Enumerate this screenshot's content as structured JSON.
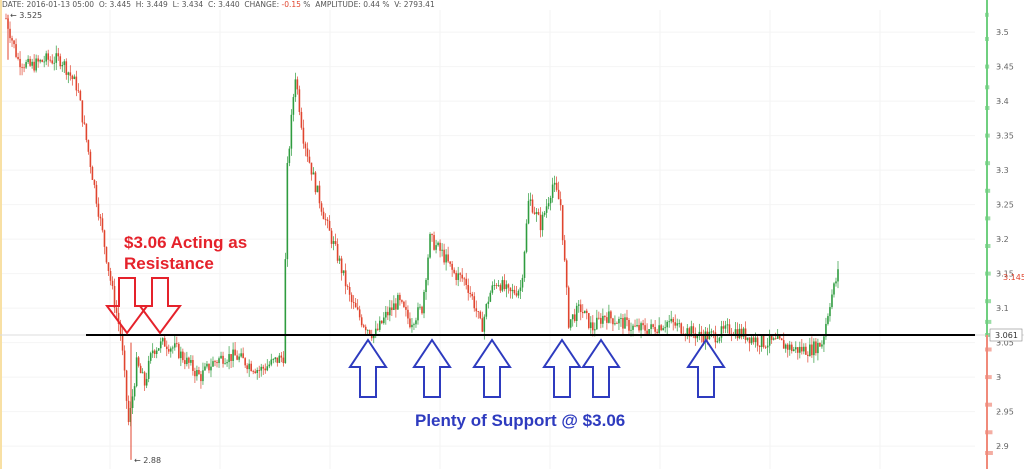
{
  "header": {
    "date_label": "DATE:",
    "date_value": "2016-01-13  05:00",
    "open_label": "O:",
    "open_value": "3.445",
    "high_label": "H:",
    "high_value": "3.449",
    "low_label": "L:",
    "low_value": "3.434",
    "close_label": "C:",
    "close_value": "3.440",
    "change_label": "CHANGE:",
    "change_value": "-0.15",
    "change_unit": "%",
    "amplitude_label": "AMPLITUDE:",
    "amplitude_value": "0.44",
    "amplitude_unit": "%",
    "volume_label": "V:",
    "volume_value": "2793.41"
  },
  "annotations": {
    "resistance_line1": "$3.06 Acting as",
    "resistance_line2": "Resistance",
    "support_text": "Plenty of Support @ $3.06",
    "high_marker": "← 3.525",
    "low_marker": "← 2.88",
    "current_price": "3.145",
    "line_price": "3.061"
  },
  "colors": {
    "up": "#2f9c3f",
    "down": "#e0452f",
    "red_annotation": "#e5222b",
    "blue_annotation": "#2e3bbf",
    "support_line": "#000000",
    "profile_up": "#6fcf7f",
    "profile_down": "#f08a7a"
  },
  "chart_data": {
    "type": "candlestick",
    "title": "",
    "xlabel": "",
    "ylabel": "",
    "ylim": [
      2.88,
      3.55
    ],
    "y_ticks": [
      "3.5",
      "3.45",
      "3.4",
      "3.35",
      "3.3",
      "3.25",
      "3.2",
      "3.15",
      "3.1",
      "3.05",
      "3",
      "2.95",
      "2.9"
    ],
    "y_tick_values": [
      3.5,
      3.45,
      3.4,
      3.35,
      3.3,
      3.25,
      3.2,
      3.15,
      3.1,
      3.05,
      3.0,
      2.95,
      2.9
    ],
    "horizontal_line": 3.061,
    "period_high": 3.525,
    "period_low": 2.88,
    "last_price": 3.145,
    "price_path": [
      [
        0,
        3.52
      ],
      [
        6,
        3.46
      ],
      [
        12,
        3.45
      ],
      [
        20,
        3.46
      ],
      [
        28,
        3.46
      ],
      [
        36,
        3.42
      ],
      [
        42,
        3.32
      ],
      [
        48,
        3.22
      ],
      [
        54,
        3.12
      ],
      [
        58,
        3.06
      ],
      [
        62,
        2.93
      ],
      [
        66,
        3.02
      ],
      [
        70,
        2.99
      ],
      [
        74,
        3.04
      ],
      [
        80,
        3.05
      ],
      [
        86,
        3.04
      ],
      [
        92,
        3.02
      ],
      [
        98,
        3.0
      ],
      [
        104,
        3.02
      ],
      [
        110,
        3.03
      ],
      [
        116,
        3.03
      ],
      [
        122,
        3.02
      ],
      [
        128,
        3.01
      ],
      [
        134,
        3.02
      ],
      [
        140,
        3.03
      ],
      [
        142,
        3.3
      ],
      [
        146,
        3.44
      ],
      [
        150,
        3.35
      ],
      [
        156,
        3.28
      ],
      [
        162,
        3.22
      ],
      [
        168,
        3.17
      ],
      [
        174,
        3.11
      ],
      [
        180,
        3.08
      ],
      [
        186,
        3.06
      ],
      [
        192,
        3.09
      ],
      [
        198,
        3.11
      ],
      [
        204,
        3.08
      ],
      [
        210,
        3.1
      ],
      [
        214,
        3.2
      ],
      [
        220,
        3.18
      ],
      [
        226,
        3.15
      ],
      [
        232,
        3.14
      ],
      [
        236,
        3.11
      ],
      [
        240,
        3.07
      ],
      [
        244,
        3.12
      ],
      [
        248,
        3.14
      ],
      [
        254,
        3.12
      ],
      [
        260,
        3.13
      ],
      [
        264,
        3.26
      ],
      [
        270,
        3.22
      ],
      [
        276,
        3.28
      ],
      [
        280,
        3.25
      ],
      [
        284,
        3.08
      ],
      [
        290,
        3.1
      ],
      [
        296,
        3.07
      ],
      [
        302,
        3.09
      ],
      [
        310,
        3.08
      ],
      [
        318,
        3.07
      ],
      [
        326,
        3.07
      ],
      [
        334,
        3.08
      ],
      [
        342,
        3.07
      ],
      [
        350,
        3.06
      ],
      [
        358,
        3.06
      ],
      [
        366,
        3.07
      ],
      [
        374,
        3.06
      ],
      [
        382,
        3.05
      ],
      [
        390,
        3.05
      ],
      [
        398,
        3.04
      ],
      [
        406,
        3.04
      ],
      [
        412,
        3.05
      ],
      [
        416,
        3.11
      ],
      [
        420,
        3.15
      ]
    ],
    "volume_profile": [
      {
        "price": 3.525,
        "bar": 0.04
      },
      {
        "price": 3.49,
        "bar": 0.06
      },
      {
        "price": 3.45,
        "bar": 0.1
      },
      {
        "price": 3.42,
        "bar": 0.12
      },
      {
        "price": 3.39,
        "bar": 0.14
      },
      {
        "price": 3.35,
        "bar": 0.18
      },
      {
        "price": 3.31,
        "bar": 0.22
      },
      {
        "price": 3.27,
        "bar": 0.24
      },
      {
        "price": 3.23,
        "bar": 0.26
      },
      {
        "price": 3.19,
        "bar": 0.28
      },
      {
        "price": 3.15,
        "bar": 0.32
      },
      {
        "price": 3.11,
        "bar": 0.36
      },
      {
        "price": 3.08,
        "bar": 0.4
      },
      {
        "price": 3.061,
        "bar": 0.42
      },
      {
        "price": 3.04,
        "bar": 0.44
      },
      {
        "price": 3.0,
        "bar": 0.46
      },
      {
        "price": 2.96,
        "bar": 0.5
      },
      {
        "price": 2.92,
        "bar": 0.56
      },
      {
        "price": 2.89,
        "bar": 0.62
      }
    ]
  }
}
